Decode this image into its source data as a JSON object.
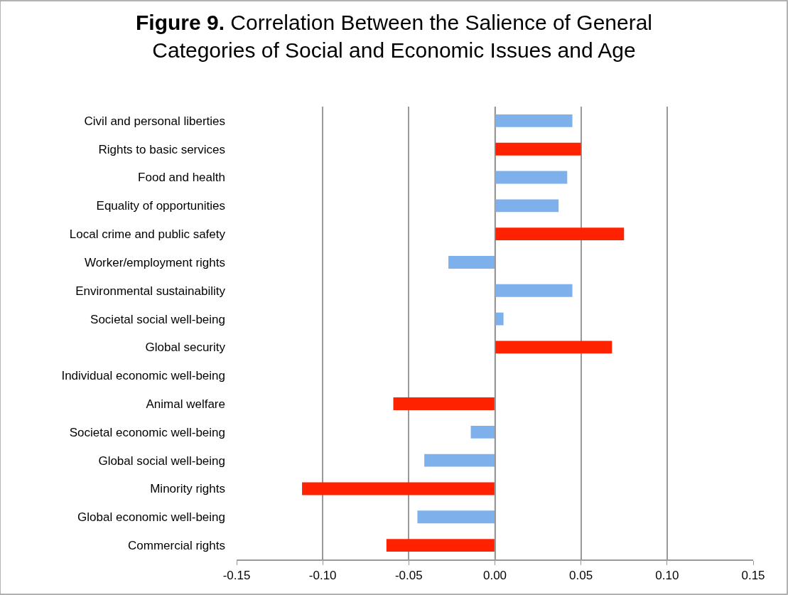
{
  "chart_data": {
    "type": "bar",
    "orientation": "horizontal",
    "title": "Figure 9. Correlation Between the Salience of General\nCategories of Social and Economic Issues and Age",
    "categories": [
      "Civil and personal liberties",
      "Rights to basic services",
      "Food and health",
      "Equality of opportunities",
      "Local crime and public safety",
      "Worker/employment rights",
      "Environmental sustainability",
      "Societal social well-being",
      "Global security",
      "Individual economic well-being",
      "Animal welfare",
      "Societal economic well-being",
      "Global social well-being",
      "Minority rights",
      "Global economic well-being",
      "Commercial rights"
    ],
    "values": [
      0.045,
      0.05,
      0.042,
      0.037,
      0.075,
      -0.027,
      0.045,
      0.005,
      0.068,
      0,
      -0.059,
      -0.014,
      -0.041,
      -0.112,
      -0.045,
      -0.063
    ],
    "colors": [
      "#7eb0ec",
      "#ff2200",
      "#7eb0ec",
      "#7eb0ec",
      "#ff2200",
      "#7eb0ec",
      "#7eb0ec",
      "#7eb0ec",
      "#ff2200",
      "#7eb0ec",
      "#ff2200",
      "#7eb0ec",
      "#7eb0ec",
      "#ff2200",
      "#7eb0ec",
      "#ff2200"
    ],
    "xlim": [
      -0.15,
      0.15
    ],
    "xticks": [
      {
        "value": -0.15,
        "label": "-0.15"
      },
      {
        "value": -0.1,
        "label": "-0.10"
      },
      {
        "value": -0.05,
        "label": "-0.05"
      },
      {
        "value": 0,
        "label": "0.00"
      },
      {
        "value": 0.05,
        "label": "0.05"
      },
      {
        "value": 0.1,
        "label": "0.10"
      },
      {
        "value": 0.15,
        "label": "0.15"
      }
    ],
    "grid": "x"
  }
}
